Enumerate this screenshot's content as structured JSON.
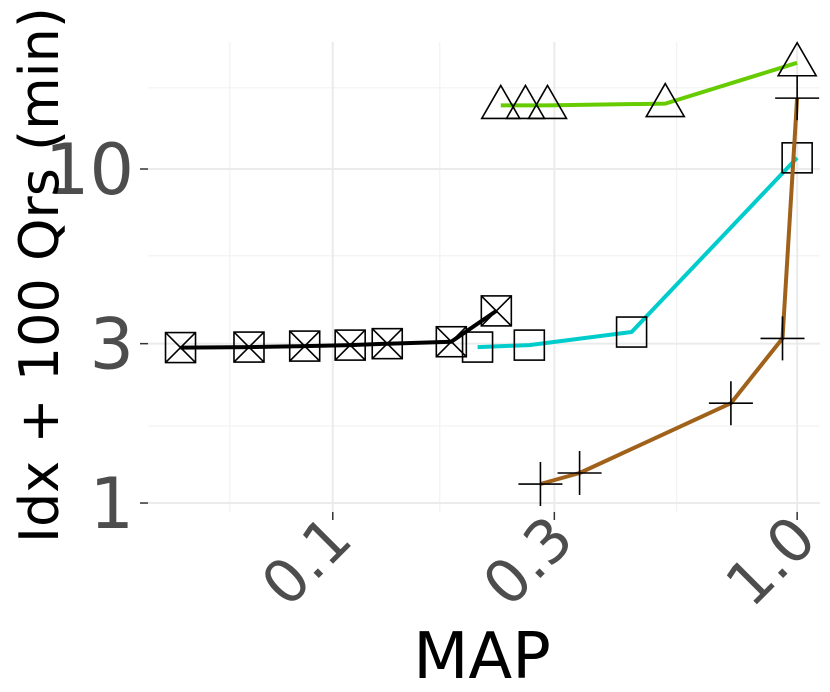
{
  "chart_data": {
    "type": "line",
    "xlabel": "MAP",
    "ylabel": "Idx + 100 Qrs (min)",
    "x_scale": "log10",
    "y_scale": "log10",
    "xlim": [
      0.04,
      1.12
    ],
    "ylim": [
      0.94,
      24
    ],
    "x_ticks": [
      0.1,
      0.3,
      1.0
    ],
    "x_tick_labels": [
      "0.1",
      "0.3",
      "1.0"
    ],
    "y_ticks": [
      1,
      3,
      10
    ],
    "y_tick_labels": [
      "1",
      "3",
      "10"
    ],
    "grid": true,
    "legend": "none",
    "series": [
      {
        "color": "#66cc00",
        "marker": "triangle",
        "points": [
          [
            0.23,
            15.5
          ],
          [
            0.26,
            15.5
          ],
          [
            0.29,
            15.5
          ],
          [
            0.52,
            15.7
          ],
          [
            1.0,
            20.8
          ]
        ]
      },
      {
        "color": "#00cccc",
        "marker": "square",
        "points": [
          [
            0.205,
            2.93
          ],
          [
            0.265,
            2.97
          ],
          [
            0.44,
            3.25
          ],
          [
            1.0,
            10.8
          ]
        ]
      },
      {
        "color": "#a0611b",
        "marker": "plus",
        "points": [
          [
            0.28,
            1.14
          ],
          [
            0.34,
            1.23
          ],
          [
            0.72,
            1.99
          ],
          [
            0.93,
            3.11
          ],
          [
            1.0,
            16.3
          ]
        ]
      },
      {
        "color": "#000000",
        "marker": "boxed-x",
        "points": [
          [
            0.047,
            2.92
          ],
          [
            0.066,
            2.93
          ],
          [
            0.087,
            2.95
          ],
          [
            0.109,
            2.97
          ],
          [
            0.131,
            3.0
          ],
          [
            0.18,
            3.04
          ],
          [
            0.225,
            3.76
          ]
        ]
      }
    ]
  }
}
